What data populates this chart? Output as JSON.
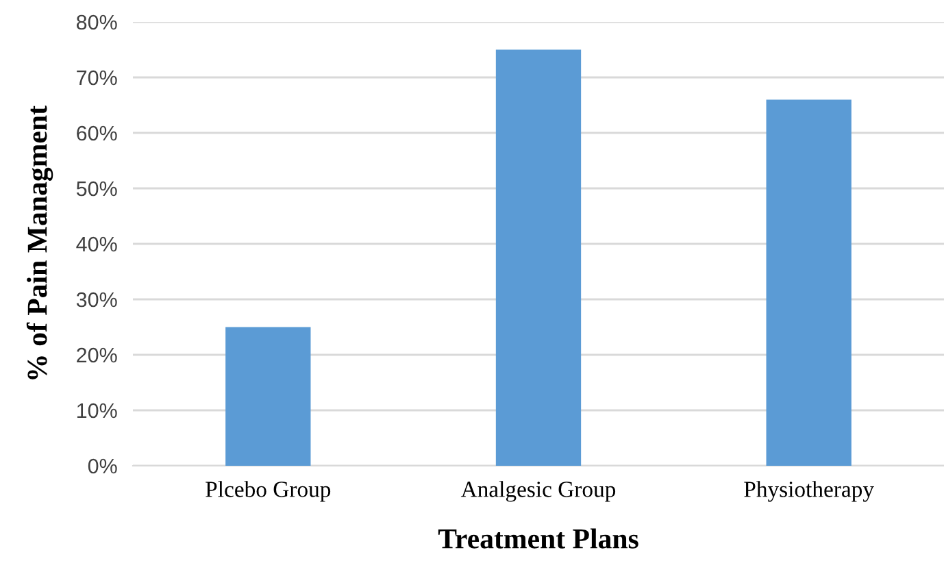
{
  "chart_data": {
    "type": "bar",
    "xlabel": "Treatment Plans",
    "ylabel": "% of Pain Managment",
    "categories": [
      "Plcebo Group",
      "Analgesic Group",
      "Physiotherapy"
    ],
    "values": [
      25,
      75,
      66
    ],
    "color": "#5b9bd5",
    "ylim": [
      0,
      80
    ],
    "yticks": [
      {
        "value": 0,
        "label": "0%"
      },
      {
        "value": 10,
        "label": "10%"
      },
      {
        "value": 20,
        "label": "20%"
      },
      {
        "value": 30,
        "label": "30%"
      },
      {
        "value": 40,
        "label": "40%"
      },
      {
        "value": 50,
        "label": "50%"
      },
      {
        "value": 60,
        "label": "60%"
      },
      {
        "value": 70,
        "label": "70%"
      },
      {
        "value": 80,
        "label": "80%"
      }
    ],
    "grid": "y"
  }
}
